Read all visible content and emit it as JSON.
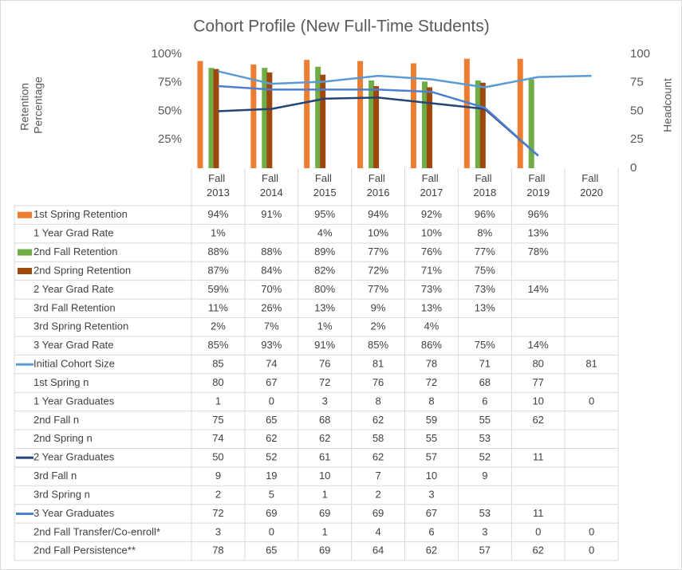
{
  "chart_data": {
    "type": "bar-line-table",
    "title": "Cohort Profile (New Full-Time Students)",
    "y_label": "Retention Percentage",
    "y2_label": "Headcount",
    "categories": [
      "Fall 2013",
      "Fall 2014",
      "Fall 2015",
      "Fall 2016",
      "Fall 2017",
      "Fall 2018",
      "Fall 2019",
      "Fall 2020"
    ],
    "ylim": [
      0,
      100
    ],
    "yticks": [
      {
        "value": 25,
        "label": "25%"
      },
      {
        "value": 50,
        "label": "50%"
      },
      {
        "value": 75,
        "label": "75%"
      },
      {
        "value": 100,
        "label": "100%"
      }
    ],
    "y2lim": [
      0,
      100
    ],
    "y2ticks": [
      0,
      25,
      50,
      75,
      100
    ],
    "series": [
      {
        "name": "1st Spring Retention",
        "kind": "bar",
        "color": "#ed7d31",
        "values": [
          94,
          91,
          95,
          94,
          92,
          96,
          96,
          null
        ],
        "value_labels": [
          "94%",
          "91%",
          "95%",
          "94%",
          "92%",
          "96%",
          "96%",
          null
        ]
      },
      {
        "name": "1 Year Grad Rate",
        "values": [
          1,
          null,
          4,
          10,
          10,
          8,
          13,
          null
        ],
        "value_labels": [
          "1%",
          null,
          "4%",
          "10%",
          "10%",
          "8%",
          "13%",
          null
        ]
      },
      {
        "name": "2nd Fall Retention",
        "kind": "bar",
        "color": "#70ad47",
        "values": [
          88,
          88,
          89,
          77,
          76,
          77,
          78,
          null
        ],
        "value_labels": [
          "88%",
          "88%",
          "89%",
          "77%",
          "76%",
          "77%",
          "78%",
          null
        ]
      },
      {
        "name": "2nd Spring Retention",
        "kind": "bar",
        "color": "#9e480e",
        "values": [
          87,
          84,
          82,
          72,
          71,
          75,
          null,
          null
        ],
        "value_labels": [
          "87%",
          "84%",
          "82%",
          "72%",
          "71%",
          "75%",
          null,
          null
        ]
      },
      {
        "name": "2 Year Grad Rate",
        "values": [
          59,
          70,
          80,
          77,
          73,
          73,
          14,
          null
        ],
        "value_labels": [
          "59%",
          "70%",
          "80%",
          "77%",
          "73%",
          "73%",
          "14%",
          null
        ]
      },
      {
        "name": "3rd Fall Retention",
        "values": [
          11,
          26,
          13,
          9,
          13,
          13,
          null,
          null
        ],
        "value_labels": [
          "11%",
          "26%",
          "13%",
          "9%",
          "13%",
          "13%",
          null,
          null
        ]
      },
      {
        "name": "3rd Spring Retention",
        "values": [
          2,
          7,
          1,
          2,
          4,
          null,
          null,
          null
        ],
        "value_labels": [
          "2%",
          "7%",
          "1%",
          "2%",
          "4%",
          null,
          null,
          null
        ]
      },
      {
        "name": "3 Year Grad Rate",
        "values": [
          85,
          93,
          91,
          85,
          86,
          75,
          14,
          null
        ],
        "value_labels": [
          "85%",
          "93%",
          "91%",
          "85%",
          "86%",
          "75%",
          "14%",
          null
        ]
      },
      {
        "name": "Initial Cohort Size",
        "kind": "line",
        "axis": "y2",
        "color": "#5b9bd5",
        "values": [
          85,
          74,
          76,
          81,
          78,
          71,
          80,
          81
        ]
      },
      {
        "name": "1st Spring n",
        "values": [
          80,
          67,
          72,
          76,
          72,
          68,
          77,
          null
        ]
      },
      {
        "name": "1 Year Graduates",
        "values": [
          1,
          0,
          3,
          8,
          8,
          6,
          10,
          0
        ]
      },
      {
        "name": "2nd Fall n",
        "values": [
          75,
          65,
          68,
          62,
          59,
          55,
          62,
          null
        ]
      },
      {
        "name": "2nd Spring n",
        "values": [
          74,
          62,
          62,
          58,
          55,
          53,
          null,
          null
        ]
      },
      {
        "name": "2 Year Graduates",
        "kind": "line",
        "axis": "y2",
        "color": "#264478",
        "values": [
          50,
          52,
          61,
          62,
          57,
          52,
          11,
          null
        ]
      },
      {
        "name": "3rd Fall n",
        "values": [
          9,
          19,
          10,
          7,
          10,
          9,
          null,
          null
        ]
      },
      {
        "name": "3rd Spring n",
        "values": [
          2,
          5,
          1,
          2,
          3,
          null,
          null,
          null
        ]
      },
      {
        "name": "3 Year Graduates",
        "kind": "line",
        "axis": "y2",
        "color": "#4e7fd0",
        "values": [
          72,
          69,
          69,
          69,
          67,
          53,
          11,
          null
        ]
      },
      {
        "name": "2nd Fall Transfer/Co-enroll*",
        "values": [
          3,
          0,
          1,
          4,
          6,
          3,
          0,
          0
        ]
      },
      {
        "name": "2nd Fall Persistence**",
        "values": [
          78,
          65,
          69,
          64,
          62,
          57,
          62,
          0
        ]
      }
    ]
  }
}
